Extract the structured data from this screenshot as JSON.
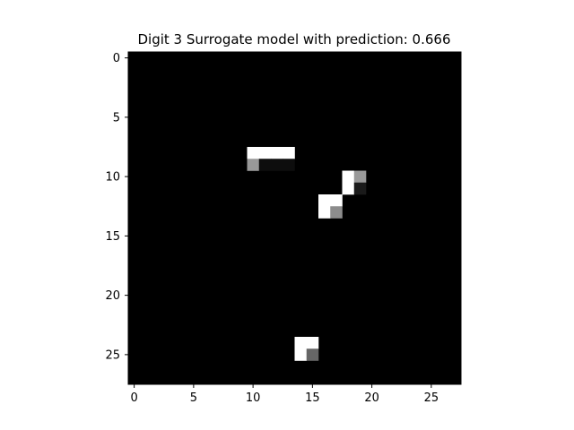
{
  "chart_data": {
    "type": "heatmap",
    "title": "Digit 3 Surrogate model with prediction: 0.666",
    "xlabel": "",
    "ylabel": "",
    "rows": 28,
    "cols": 28,
    "colormap": "gray",
    "vmin": 0,
    "vmax": 1,
    "background_value": 0,
    "xlim": [
      -0.5,
      27.5
    ],
    "ylim": [
      27.5,
      -0.5
    ],
    "x_ticks": [
      0,
      5,
      10,
      15,
      20,
      25
    ],
    "y_ticks": [
      0,
      5,
      10,
      15,
      20,
      25
    ],
    "x_tick_labels": [
      "0",
      "5",
      "10",
      "15",
      "20",
      "25"
    ],
    "y_tick_labels": [
      "0",
      "5",
      "10",
      "15",
      "20",
      "25"
    ],
    "grid": false,
    "cells": [
      {
        "row": 8,
        "col": 10,
        "value": 1.0
      },
      {
        "row": 8,
        "col": 11,
        "value": 1.0
      },
      {
        "row": 8,
        "col": 12,
        "value": 1.0
      },
      {
        "row": 8,
        "col": 13,
        "value": 1.0
      },
      {
        "row": 9,
        "col": 10,
        "value": 0.6
      },
      {
        "row": 9,
        "col": 11,
        "value": 0.05
      },
      {
        "row": 9,
        "col": 12,
        "value": 0.05
      },
      {
        "row": 9,
        "col": 13,
        "value": 0.05
      },
      {
        "row": 10,
        "col": 18,
        "value": 1.0
      },
      {
        "row": 10,
        "col": 19,
        "value": 0.6
      },
      {
        "row": 11,
        "col": 18,
        "value": 1.0
      },
      {
        "row": 11,
        "col": 19,
        "value": 0.1
      },
      {
        "row": 12,
        "col": 16,
        "value": 1.0
      },
      {
        "row": 12,
        "col": 17,
        "value": 1.0
      },
      {
        "row": 13,
        "col": 16,
        "value": 1.0
      },
      {
        "row": 13,
        "col": 17,
        "value": 0.55
      },
      {
        "row": 24,
        "col": 14,
        "value": 1.0
      },
      {
        "row": 24,
        "col": 15,
        "value": 1.0
      },
      {
        "row": 25,
        "col": 14,
        "value": 1.0
      },
      {
        "row": 25,
        "col": 15,
        "value": 0.4
      }
    ]
  }
}
